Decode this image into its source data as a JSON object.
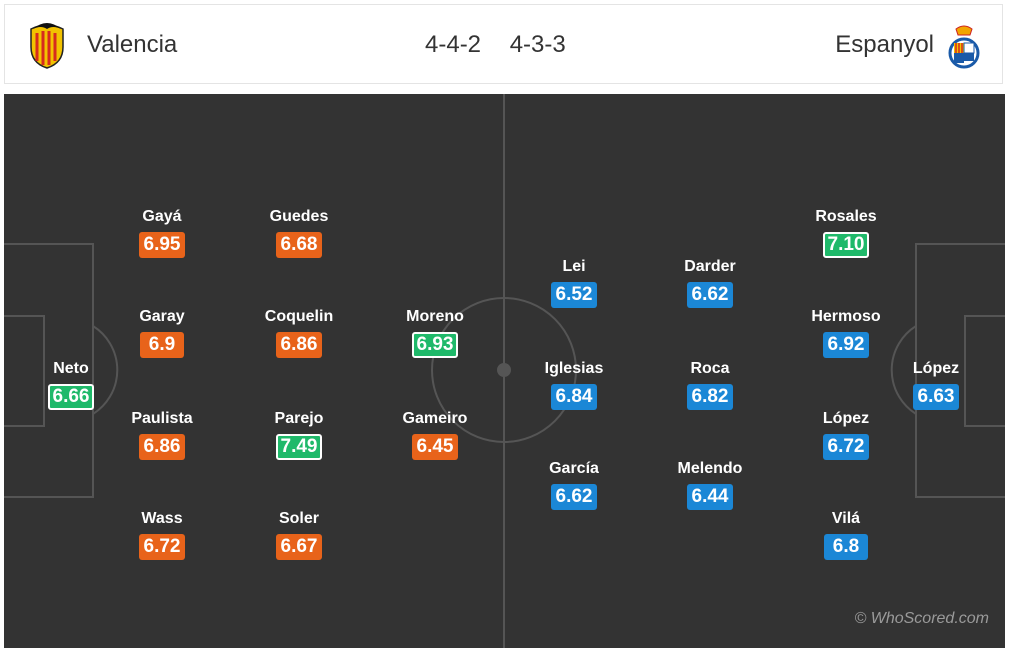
{
  "header": {
    "home_team": "Valencia",
    "away_team": "Espanyol",
    "home_formation": "4-4-2",
    "away_formation": "4-3-3"
  },
  "colors": {
    "pitch": "#333333",
    "rating_home": "#e8631a",
    "rating_away": "#1b87d6",
    "rating_top": "#1fb96a"
  },
  "home_players": [
    {
      "name": "Neto",
      "rating": "6.66",
      "style": "green"
    },
    {
      "name": "Gayá",
      "rating": "6.95",
      "style": "orange"
    },
    {
      "name": "Garay",
      "rating": "6.9",
      "style": "orange"
    },
    {
      "name": "Paulista",
      "rating": "6.86",
      "style": "orange"
    },
    {
      "name": "Wass",
      "rating": "6.72",
      "style": "orange"
    },
    {
      "name": "Guedes",
      "rating": "6.68",
      "style": "orange"
    },
    {
      "name": "Coquelin",
      "rating": "6.86",
      "style": "orange"
    },
    {
      "name": "Parejo",
      "rating": "7.49",
      "style": "green"
    },
    {
      "name": "Soler",
      "rating": "6.67",
      "style": "orange"
    },
    {
      "name": "Moreno",
      "rating": "6.93",
      "style": "green"
    },
    {
      "name": "Gameiro",
      "rating": "6.45",
      "style": "orange"
    }
  ],
  "away_players": [
    {
      "name": "Lei",
      "rating": "6.52",
      "style": "blue"
    },
    {
      "name": "Iglesias",
      "rating": "6.84",
      "style": "blue"
    },
    {
      "name": "García",
      "rating": "6.62",
      "style": "blue"
    },
    {
      "name": "Darder",
      "rating": "6.62",
      "style": "blue"
    },
    {
      "name": "Roca",
      "rating": "6.82",
      "style": "blue"
    },
    {
      "name": "Melendo",
      "rating": "6.44",
      "style": "blue"
    },
    {
      "name": "Rosales",
      "rating": "7.10",
      "style": "green"
    },
    {
      "name": "Hermoso",
      "rating": "6.92",
      "style": "blue"
    },
    {
      "name": "López",
      "rating": "6.72",
      "style": "blue"
    },
    {
      "name": "Vilá",
      "rating": "6.8",
      "style": "blue"
    },
    {
      "name": "López",
      "rating": "6.63",
      "style": "blue"
    }
  ],
  "watermark": "© WhoScored.com"
}
